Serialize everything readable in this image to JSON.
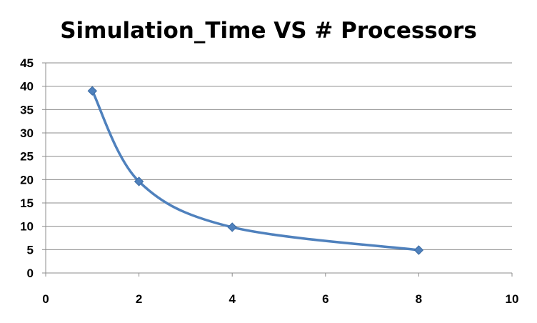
{
  "chart_data": {
    "type": "scatter",
    "title": "Simulation_Time VS # Processors",
    "xlabel": "",
    "ylabel": "",
    "x": [
      1,
      2,
      4,
      8
    ],
    "series": [
      {
        "values": [
          39,
          19.6,
          9.8,
          4.9
        ],
        "color": "#4f81bd",
        "marker": "diamond",
        "smooth": true
      }
    ],
    "xlim": [
      0,
      10
    ],
    "ylim": [
      0,
      45
    ],
    "xticks": [
      0,
      2,
      4,
      6,
      8,
      10
    ],
    "yticks": [
      0,
      5,
      10,
      15,
      20,
      25,
      30,
      35,
      40,
      45
    ],
    "xtick_labels": [
      "0",
      "2",
      "4",
      "6",
      "8",
      "10"
    ],
    "ytick_labels": [
      "0",
      "5",
      "10",
      "15",
      "20",
      "25",
      "30",
      "35",
      "40",
      "45"
    ],
    "grid": "horizontal",
    "legend": "none"
  }
}
